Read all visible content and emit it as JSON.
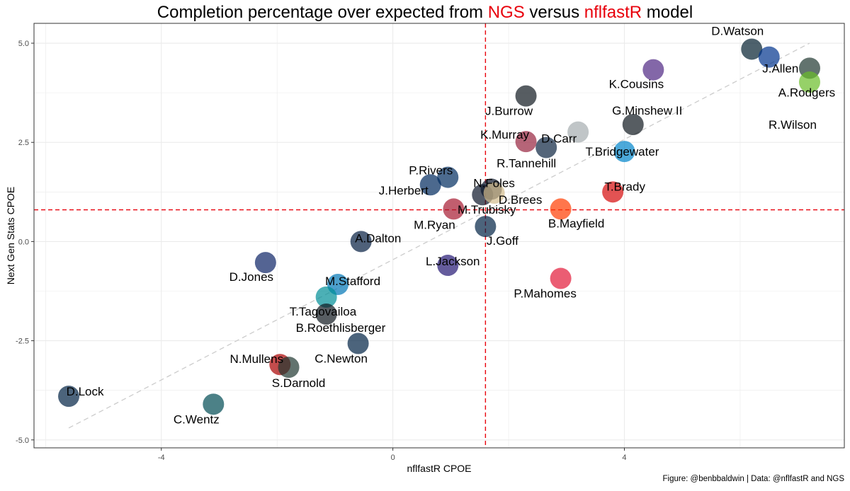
{
  "title": {
    "prefix": "Completion percentage over expected from ",
    "ngs": "NGS",
    "middle": " versus ",
    "nflfastr": "nflfastR",
    "suffix": " model"
  },
  "caption": "Figure: @benbbaldwin | Data: @nflfastR and NGS",
  "colors": {
    "accent": "#e8000b",
    "grid": "#ebebeb",
    "trend": "#cccccc"
  },
  "chart_data": {
    "type": "scatter",
    "xlabel": "nflfastR CPOE",
    "ylabel": "Next Gen Stats CPOE",
    "xlim": [
      -6.2,
      7.8
    ],
    "ylim": [
      -5.2,
      5.5
    ],
    "x_ticks": [
      -4,
      0,
      4
    ],
    "x_tick_labels": [
      "-4",
      "0",
      "4"
    ],
    "y_ticks": [
      -5,
      -2.5,
      0,
      2.5,
      5
    ],
    "y_tick_labels": [
      "-5.0",
      "-2.5",
      "0.0",
      "2.5",
      "5.0"
    ],
    "grid": true,
    "mean_lines": {
      "x": 1.6,
      "y": 0.8
    },
    "trend_line": {
      "from": [
        -5.6,
        -4.7
      ],
      "to": [
        7.2,
        5.0
      ]
    },
    "points": [
      {
        "name": "D.Watson",
        "x": 6.2,
        "y": 4.85,
        "color": "#03202f"
      },
      {
        "name": "J.Allen",
        "x": 6.5,
        "y": 4.65,
        "color": "#00338d"
      },
      {
        "name": "A.Rodgers",
        "x": 7.2,
        "y": 4.37,
        "color": "#203731"
      },
      {
        "name": "R.Wilson",
        "x": 7.2,
        "y": 4.02,
        "color": "#69be28"
      },
      {
        "name": "K.Cousins",
        "x": 4.5,
        "y": 4.33,
        "color": "#4f2683"
      },
      {
        "name": "J.Burrow",
        "x": 2.3,
        "y": 3.67,
        "color": "#101820"
      },
      {
        "name": "G.Minshew II",
        "x": 4.15,
        "y": 2.95,
        "color": "#101820"
      },
      {
        "name": "D.Carr",
        "x": 3.2,
        "y": 2.76,
        "color": "#a5acaf"
      },
      {
        "name": "K.Murray",
        "x": 2.3,
        "y": 2.52,
        "color": "#97233f"
      },
      {
        "name": "R.Tannehill",
        "x": 2.65,
        "y": 2.37,
        "color": "#0c2340"
      },
      {
        "name": "T.Bridgewater",
        "x": 4.0,
        "y": 2.27,
        "color": "#0085ca"
      },
      {
        "name": "P.Rivers",
        "x": 0.95,
        "y": 1.62,
        "color": "#002c5f"
      },
      {
        "name": "J.Herbert",
        "x": 0.65,
        "y": 1.43,
        "color": "#002a5e"
      },
      {
        "name": "N.Foles",
        "x": 1.7,
        "y": 1.32,
        "color": "#0b162a"
      },
      {
        "name": "M.Trubisky",
        "x": 1.55,
        "y": 1.18,
        "color": "#0b162a"
      },
      {
        "name": "D.Brees",
        "x": 1.75,
        "y": 1.22,
        "color": "#d3bc8d"
      },
      {
        "name": "T.Brady",
        "x": 3.8,
        "y": 1.25,
        "color": "#d50a0a"
      },
      {
        "name": "M.Ryan",
        "x": 1.05,
        "y": 0.82,
        "color": "#a71930"
      },
      {
        "name": "B.Mayfield",
        "x": 2.9,
        "y": 0.82,
        "color": "#ff3c00"
      },
      {
        "name": "J.Goff",
        "x": 1.6,
        "y": 0.38,
        "color": "#002244"
      },
      {
        "name": "A.Dalton",
        "x": -0.55,
        "y": 0.0,
        "color": "#041e42"
      },
      {
        "name": "D.Jones",
        "x": -2.2,
        "y": -0.53,
        "color": "#0b2265"
      },
      {
        "name": "L.Jackson",
        "x": 0.95,
        "y": -0.6,
        "color": "#241773"
      },
      {
        "name": "P.Mahomes",
        "x": 2.9,
        "y": -0.93,
        "color": "#e31837"
      },
      {
        "name": "M.Stafford",
        "x": -0.95,
        "y": -1.08,
        "color": "#0076b6"
      },
      {
        "name": "T.Tagovailoa",
        "x": -1.15,
        "y": -1.4,
        "color": "#008e97"
      },
      {
        "name": "B.Roethlisberger",
        "x": -1.15,
        "y": -1.83,
        "color": "#101820"
      },
      {
        "name": "C.Newton",
        "x": -0.6,
        "y": -2.57,
        "color": "#002244"
      },
      {
        "name": "N.Mullens",
        "x": -1.95,
        "y": -3.1,
        "color": "#aa0000"
      },
      {
        "name": "S.Darnold",
        "x": -1.8,
        "y": -3.17,
        "color": "#203731"
      },
      {
        "name": "D.Lock",
        "x": -5.6,
        "y": -3.9,
        "color": "#002244"
      },
      {
        "name": "C.Wentz",
        "x": -3.1,
        "y": -4.1,
        "color": "#004c54"
      }
    ]
  }
}
